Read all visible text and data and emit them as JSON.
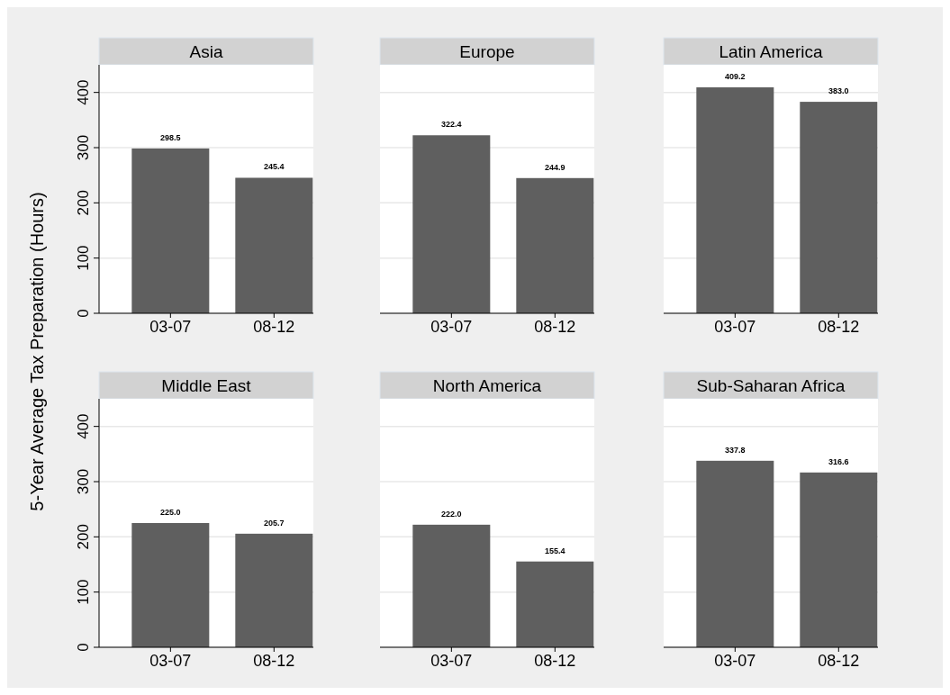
{
  "chart_data": [
    {
      "type": "bar",
      "title": "Asia",
      "ylabel": "5-Year Average Tax Preparation (Hours)",
      "categories": [
        "03-07",
        "08-12"
      ],
      "values": [
        298.5,
        245.4
      ],
      "value_labels": [
        "298.5",
        "245.4"
      ],
      "color": "#5f5f5f",
      "ylim": [
        0,
        450
      ],
      "yticks": [
        0,
        100,
        200,
        300,
        400
      ],
      "grid": "y"
    },
    {
      "type": "bar",
      "title": "Europe",
      "categories": [
        "03-07",
        "08-12"
      ],
      "values": [
        322.4,
        244.9
      ],
      "value_labels": [
        "322.4",
        "244.9"
      ],
      "color": "#5f5f5f",
      "ylim": [
        0,
        450
      ],
      "yticks": [
        0,
        100,
        200,
        300,
        400
      ],
      "grid": "y",
      "tick_labels": "x"
    },
    {
      "type": "bar",
      "title": "Latin America",
      "categories": [
        "03-07",
        "08-12"
      ],
      "values": [
        409.2,
        383.0
      ],
      "value_labels": [
        "409.2",
        "383.0"
      ],
      "color": "#5f5f5f",
      "ylim": [
        0,
        450
      ],
      "yticks": [
        0,
        100,
        200,
        300,
        400
      ],
      "grid": "y",
      "tick_labels": "x"
    },
    {
      "type": "bar",
      "title": "Middle East",
      "categories": [
        "03-07",
        "08-12"
      ],
      "values": [
        225.0,
        205.7
      ],
      "value_labels": [
        "225.0",
        "205.7"
      ],
      "color": "#5f5f5f",
      "ylim": [
        0,
        450
      ],
      "yticks": [
        0,
        100,
        200,
        300,
        400
      ],
      "grid": "y"
    },
    {
      "type": "bar",
      "title": "North America",
      "categories": [
        "03-07",
        "08-12"
      ],
      "values": [
        222.0,
        155.4
      ],
      "value_labels": [
        "222.0",
        "155.4"
      ],
      "color": "#5f5f5f",
      "ylim": [
        0,
        450
      ],
      "yticks": [
        0,
        100,
        200,
        300,
        400
      ],
      "grid": "y",
      "tick_labels": "x"
    },
    {
      "type": "bar",
      "title": "Sub-Saharan Africa",
      "categories": [
        "03-07",
        "08-12"
      ],
      "values": [
        337.8,
        316.6
      ],
      "value_labels": [
        "337.8",
        "316.6"
      ],
      "color": "#5f5f5f",
      "ylim": [
        0,
        450
      ],
      "yticks": [
        0,
        100,
        200,
        300,
        400
      ],
      "grid": "y",
      "tick_labels": "x"
    }
  ]
}
